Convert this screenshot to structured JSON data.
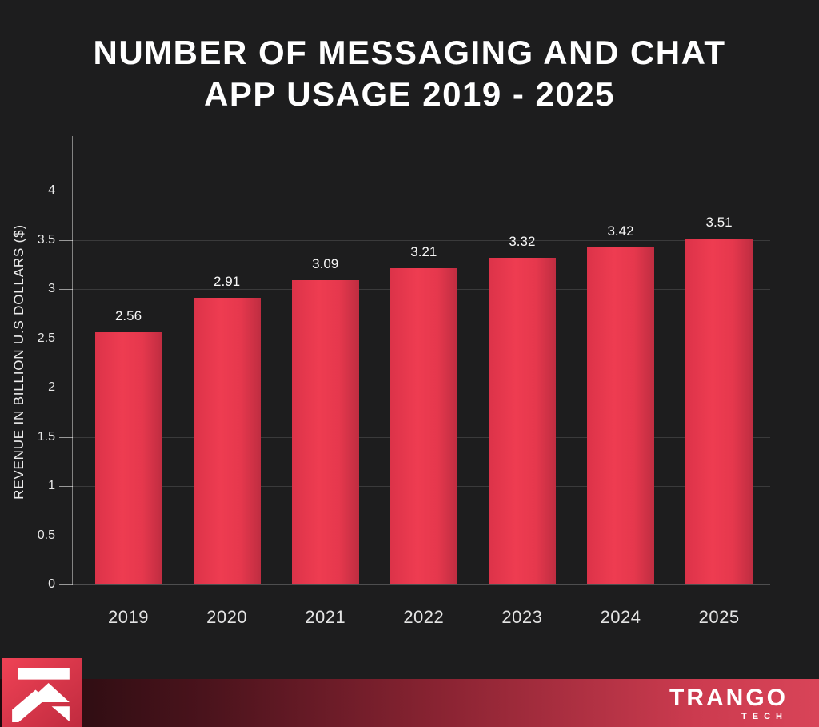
{
  "title": {
    "line1": "NUMBER OF MESSAGING AND CHAT",
    "line2": "APP USAGE 2019 - 2025"
  },
  "chart_data": {
    "type": "bar",
    "title": "NUMBER OF MESSAGING AND CHAT APP USAGE 2019 - 2025",
    "categories": [
      "2019",
      "2020",
      "2021",
      "2022",
      "2023",
      "2024",
      "2025"
    ],
    "values": [
      2.56,
      2.91,
      3.09,
      3.21,
      3.32,
      3.42,
      3.51
    ],
    "value_labels": [
      "2.56",
      "2.91",
      "3.09",
      "3.21",
      "3.32",
      "3.42",
      "3.51"
    ],
    "xlabel": "",
    "ylabel": "REVENUE IN BILLION U.S DOLLARS ($)",
    "ylim": [
      0,
      4.55
    ],
    "yticks": [
      0,
      0.5,
      1,
      1.5,
      2,
      2.5,
      3,
      3.5,
      4
    ],
    "grid": true,
    "legend": false,
    "bar_color": "#ee3c51"
  },
  "colors": {
    "background": "#1d1d1e",
    "bar": "#ee3c51",
    "bar_edge_dark": "#bf2d41",
    "title_text": "#ffffff",
    "axis_text": "#e8e8e8",
    "gridline": "rgba(255,255,255,0.13)",
    "footer_red": "#d84458"
  },
  "footer": {
    "brand": "TRANGO",
    "brand_sub": "TECH"
  },
  "icons": {
    "logo": "arrow-up-right-icon"
  }
}
